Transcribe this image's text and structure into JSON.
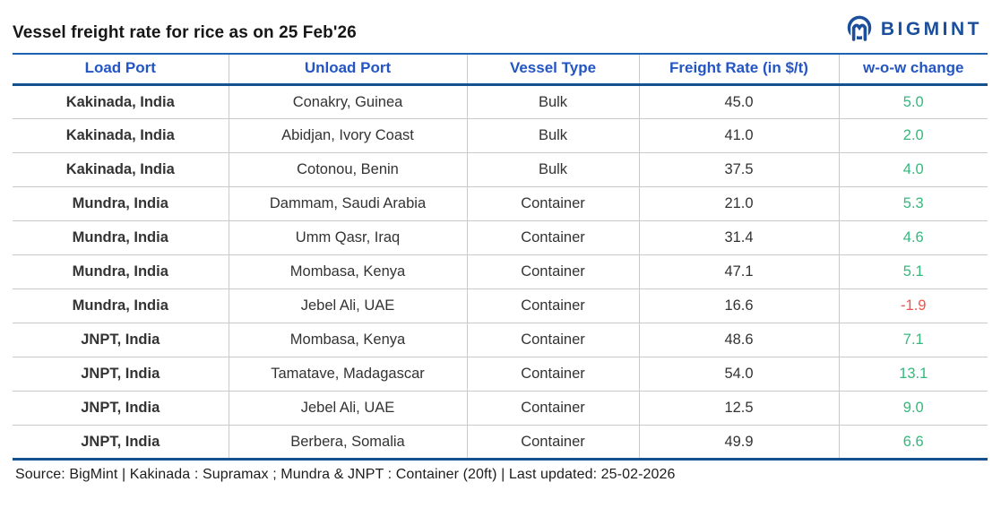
{
  "title": "Vessel freight rate for rice as on 25 Feb'26",
  "brand": {
    "name": "BIGMINT",
    "icon": "bigmint-logo-icon",
    "color": "#1b4e9b"
  },
  "chart_data": {
    "type": "table",
    "title": "Vessel freight rate for rice as on 25 Feb'26",
    "columns": [
      "Load Port",
      "Unload Port",
      "Vessel Type",
      "Freight Rate (in $/t)",
      "w-o-w change"
    ],
    "rows": [
      {
        "load_port": "Kakinada, India",
        "unload_port": "Conakry, Guinea",
        "vessel_type": "Bulk",
        "freight_rate": "45.0",
        "wow_change": "5.0"
      },
      {
        "load_port": "Kakinada, India",
        "unload_port": "Abidjan, Ivory Coast",
        "vessel_type": "Bulk",
        "freight_rate": "41.0",
        "wow_change": "2.0"
      },
      {
        "load_port": "Kakinada, India",
        "unload_port": "Cotonou, Benin",
        "vessel_type": "Bulk",
        "freight_rate": "37.5",
        "wow_change": "4.0"
      },
      {
        "load_port": "Mundra, India",
        "unload_port": "Dammam, Saudi Arabia",
        "vessel_type": "Container",
        "freight_rate": "21.0",
        "wow_change": "5.3"
      },
      {
        "load_port": "Mundra, India",
        "unload_port": "Umm Qasr, Iraq",
        "vessel_type": "Container",
        "freight_rate": "31.4",
        "wow_change": "4.6"
      },
      {
        "load_port": "Mundra, India",
        "unload_port": "Mombasa, Kenya",
        "vessel_type": "Container",
        "freight_rate": "47.1",
        "wow_change": "5.1"
      },
      {
        "load_port": "Mundra, India",
        "unload_port": "Jebel Ali, UAE",
        "vessel_type": "Container",
        "freight_rate": "16.6",
        "wow_change": "-1.9"
      },
      {
        "load_port": "JNPT, India",
        "unload_port": "Mombasa, Kenya",
        "vessel_type": "Container",
        "freight_rate": "48.6",
        "wow_change": "7.1"
      },
      {
        "load_port": "JNPT, India",
        "unload_port": "Tamatave, Madagascar",
        "vessel_type": "Container",
        "freight_rate": "54.0",
        "wow_change": "13.1"
      },
      {
        "load_port": "JNPT, India",
        "unload_port": "Jebel Ali, UAE",
        "vessel_type": "Container",
        "freight_rate": "12.5",
        "wow_change": "9.0"
      },
      {
        "load_port": "JNPT, India",
        "unload_port": "Berbera, Somalia",
        "vessel_type": "Container",
        "freight_rate": "49.9",
        "wow_change": "6.6"
      }
    ]
  },
  "footer": {
    "source_text": "Source: BigMint | Kakinada : Supramax ; Mundra & JNPT : Container (20ft) | Last updated: 25-02-2026"
  },
  "colors": {
    "header_text": "#2355c4",
    "brand_navy": "#1b4e9b",
    "border_blue_thick": "#15508f",
    "border_blue_thin": "#1e63b0",
    "row_divider": "#c9c9c9",
    "positive_change": "#34b87c",
    "negative_change": "#ef5350"
  }
}
